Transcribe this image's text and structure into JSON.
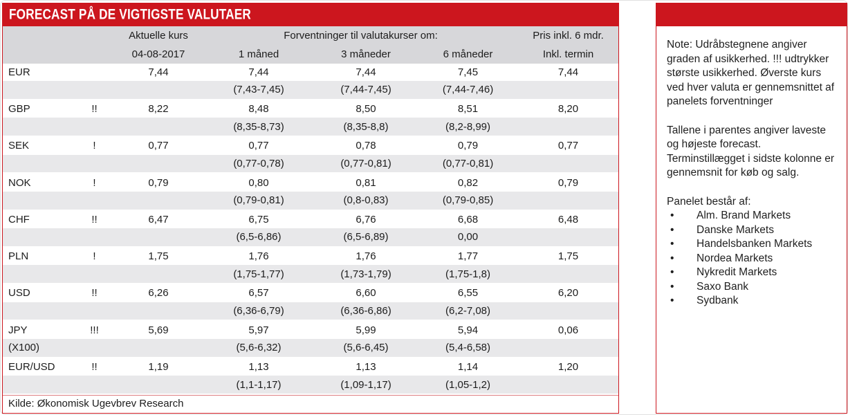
{
  "title": "FORECAST PÅ DE VIGTIGSTE VALUTAER",
  "table": {
    "header": {
      "aktuelle_kurs": "Aktuelle kurs",
      "date": "04-08-2017",
      "forventninger": "Forventninger til valutakurser om:",
      "col_1m": "1 måned",
      "col_3m": "3 måneder",
      "col_6m": "6 måneder",
      "pris": "Pris inkl. 6 mdr.",
      "inkl_termin": "Inkl. termin"
    },
    "rows": [
      {
        "currency": "EUR",
        "sublabel": "",
        "uncertainty": "",
        "current": "7,44",
        "m1": "7,44",
        "m3": "7,44",
        "m6": "7,45",
        "termin": "7,44",
        "r1": "(7,43-7,45)",
        "r3": "(7,44-7,45)",
        "r6": "(7,44-7,46)"
      },
      {
        "currency": "GBP",
        "sublabel": "",
        "uncertainty": "!!",
        "current": "8,22",
        "m1": "8,48",
        "m3": "8,50",
        "m6": "8,51",
        "termin": "8,20",
        "r1": "(8,35-8,73)",
        "r3": "(8,35-8,8)",
        "r6": "(8,2-8,99)"
      },
      {
        "currency": "SEK",
        "sublabel": "",
        "uncertainty": "!",
        "current": "0,77",
        "m1": "0,77",
        "m3": "0,78",
        "m6": "0,79",
        "termin": "0,77",
        "r1": "(0,77-0,78)",
        "r3": "(0,77-0,81)",
        "r6": "(0,77-0,81)"
      },
      {
        "currency": "NOK",
        "sublabel": "",
        "uncertainty": "!",
        "current": "0,79",
        "m1": "0,80",
        "m3": "0,81",
        "m6": "0,82",
        "termin": "0,79",
        "r1": "(0,79-0,81)",
        "r3": "(0,8-0,83)",
        "r6": "(0,79-0,85)"
      },
      {
        "currency": "CHF",
        "sublabel": "",
        "uncertainty": "!!",
        "current": "6,47",
        "m1": "6,75",
        "m3": "6,76",
        "m6": "6,68",
        "termin": "6,48",
        "r1": "(6,5-6,86)",
        "r3": "(6,5-6,89)",
        "r6": "0,00"
      },
      {
        "currency": "PLN",
        "sublabel": "",
        "uncertainty": "!",
        "current": "1,75",
        "m1": "1,76",
        "m3": "1,76",
        "m6": "1,77",
        "termin": "1,75",
        "r1": "(1,75-1,77)",
        "r3": "(1,73-1,79)",
        "r6": "(1,75-1,8)"
      },
      {
        "currency": "USD",
        "sublabel": "",
        "uncertainty": "!!",
        "current": "6,26",
        "m1": "6,57",
        "m3": "6,60",
        "m6": "6,55",
        "termin": "6,20",
        "r1": "(6,36-6,79)",
        "r3": "(6,36-6,86)",
        "r6": "(6,2-7,08)"
      },
      {
        "currency": "JPY",
        "sublabel": "(X100)",
        "uncertainty": "!!!",
        "current": "5,69",
        "m1": "5,97",
        "m3": "5,99",
        "m6": "5,94",
        "termin": "0,06",
        "r1": "(5,6-6,32)",
        "r3": "(5,6-6,45)",
        "r6": "(5,4-6,58)"
      },
      {
        "currency": "EUR/USD",
        "sublabel": "",
        "uncertainty": "!!",
        "current": "1,19",
        "m1": "1,13",
        "m3": "1,13",
        "m6": "1,14",
        "termin": "1,20",
        "r1": "(1,1-1,17)",
        "r3": "(1,09-1,17)",
        "r6": "(1,05-1,2)"
      }
    ],
    "source": "Kilde: Økonomisk Ugevbrev Research"
  },
  "note": {
    "paragraphs": [
      "Note: Udråbstegnene angiver graden af usikkerhed. !!! udtrykker største usikkerhed. Øverste kurs ved hver valuta er gennemsnittet af panelets forventninger",
      "Tallene i parentes angiver laveste og højeste forecast. Terminstillægget i sidste kolonne er gennemsnit for køb og salg."
    ],
    "panel_title": "Panelet består af:",
    "bullet": "•",
    "panel_members": [
      "Alm. Brand Markets",
      "Danske Markets",
      "Handelsbanken Markets",
      "Nordea Markets",
      "Nykredit Markets",
      "Saxo Bank",
      "Sydbank"
    ]
  },
  "colors": {
    "accent_red": "#cc161e",
    "header_gray": "#d7d7da",
    "stripe_gray": "#e8e8ea",
    "text": "#1c1c1c"
  }
}
